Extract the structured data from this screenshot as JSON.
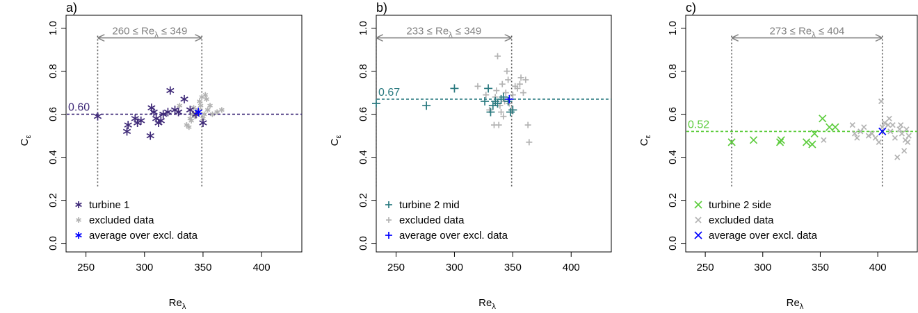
{
  "chart_data": [
    {
      "type": "scatter",
      "panel_label": "a)",
      "xlabel": "Re",
      "xlabel_sub": "λ",
      "ylabel": "C",
      "ylabel_sub": "ε",
      "xlim": [
        233,
        435
      ],
      "ylim": [
        -0.04,
        1.06
      ],
      "xticks": [
        "250",
        "300",
        "350",
        "400"
      ],
      "yticks": [
        "0.0",
        "0.2",
        "0.4",
        "0.6",
        "0.8",
        "1.0"
      ],
      "marker": "*",
      "mean_value": 0.6,
      "mean_label": "0.60",
      "mean_color": "#3f2a78",
      "range": {
        "low": 260,
        "high": 349,
        "low_label": "260",
        "high_label": "349",
        "mid_label": "Re",
        "sub": "λ"
      },
      "range_y": 0.955,
      "series": [
        {
          "name": "turbine 1",
          "color": "#3f2a78",
          "size": 12,
          "points": [
            [
              260,
              0.59
            ],
            [
              285,
              0.52
            ],
            [
              286,
              0.55
            ],
            [
              292,
              0.58
            ],
            [
              294,
              0.56
            ],
            [
              297,
              0.57
            ],
            [
              305,
              0.5
            ],
            [
              306,
              0.63
            ],
            [
              308,
              0.61
            ],
            [
              310,
              0.58
            ],
            [
              312,
              0.56
            ],
            [
              314,
              0.57
            ],
            [
              316,
              0.6
            ],
            [
              320,
              0.61
            ],
            [
              322,
              0.71
            ],
            [
              326,
              0.62
            ],
            [
              329,
              0.61
            ],
            [
              334,
              0.67
            ],
            [
              339,
              0.62
            ],
            [
              344,
              0.6
            ],
            [
              350,
              0.56
            ]
          ]
        },
        {
          "name": "excluded data",
          "color": "#b3b3b3",
          "size": 8,
          "points": [
            [
              336,
              0.55
            ],
            [
              338,
              0.54
            ],
            [
              339,
              0.58
            ],
            [
              340,
              0.57
            ],
            [
              341,
              0.6
            ],
            [
              342,
              0.63
            ],
            [
              343,
              0.59
            ],
            [
              345,
              0.61
            ],
            [
              346,
              0.62
            ],
            [
              347,
              0.66
            ],
            [
              348,
              0.64
            ],
            [
              349,
              0.68
            ],
            [
              350,
              0.58
            ],
            [
              351,
              0.6
            ],
            [
              352,
              0.69
            ],
            [
              353,
              0.67
            ],
            [
              354,
              0.62
            ],
            [
              356,
              0.64
            ],
            [
              358,
              0.6
            ],
            [
              362,
              0.61
            ],
            [
              366,
              0.62
            ],
            [
              330,
              0.64
            ]
          ]
        },
        {
          "name": "average over excl. data",
          "color": "#0000ff",
          "size": 12,
          "points": [
            [
              346,
              0.61
            ]
          ]
        }
      ]
    },
    {
      "type": "scatter",
      "panel_label": "b)",
      "xlabel": "Re",
      "xlabel_sub": "λ",
      "ylabel": "C",
      "ylabel_sub": "ε",
      "xlim": [
        233,
        435
      ],
      "ylim": [
        -0.04,
        1.06
      ],
      "xticks": [
        "250",
        "300",
        "350",
        "400"
      ],
      "yticks": [
        "0.0",
        "0.2",
        "0.4",
        "0.6",
        "0.8",
        "1.0"
      ],
      "marker": "+",
      "mean_value": 0.67,
      "mean_label": "0.67",
      "mean_color": "#2a7a80",
      "range": {
        "low": 233,
        "high": 349,
        "low_label": "233",
        "high_label": "349",
        "mid_label": "Re",
        "sub": "λ"
      },
      "range_y": 0.955,
      "series": [
        {
          "name": "turbine 2 mid",
          "color": "#2a7a80",
          "size": 12,
          "points": [
            [
              233,
              0.65
            ],
            [
              276,
              0.64
            ],
            [
              300,
              0.72
            ],
            [
              326,
              0.66
            ],
            [
              329,
              0.72
            ],
            [
              331,
              0.61
            ],
            [
              333,
              0.64
            ],
            [
              335,
              0.66
            ],
            [
              337,
              0.65
            ],
            [
              340,
              0.67
            ],
            [
              342,
              0.68
            ],
            [
              346,
              0.66
            ],
            [
              348,
              0.61
            ],
            [
              350,
              0.62
            ]
          ]
        },
        {
          "name": "excluded data",
          "color": "#b3b3b3",
          "size": 9,
          "points": [
            [
              320,
              0.73
            ],
            [
              327,
              0.69
            ],
            [
              330,
              0.62
            ],
            [
              334,
              0.55
            ],
            [
              336,
              0.71
            ],
            [
              337,
              0.87
            ],
            [
              338,
              0.55
            ],
            [
              339,
              0.64
            ],
            [
              340,
              0.61
            ],
            [
              341,
              0.74
            ],
            [
              342,
              0.59
            ],
            [
              343,
              0.66
            ],
            [
              344,
              0.7
            ],
            [
              345,
              0.8
            ],
            [
              346,
              0.76
            ],
            [
              347,
              0.65
            ],
            [
              349,
              0.62
            ],
            [
              350,
              0.69
            ],
            [
              352,
              0.73
            ],
            [
              354,
              0.72
            ],
            [
              356,
              0.74
            ],
            [
              357,
              0.77
            ],
            [
              359,
              0.7
            ],
            [
              361,
              0.76
            ],
            [
              363,
              0.55
            ],
            [
              364,
              0.47
            ],
            [
              335,
              0.68
            ]
          ]
        },
        {
          "name": "average over excl. data",
          "color": "#0000ff",
          "size": 12,
          "points": [
            [
              347,
              0.67
            ]
          ]
        }
      ]
    },
    {
      "type": "scatter",
      "panel_label": "c)",
      "xlabel": "Re",
      "xlabel_sub": "λ",
      "ylabel": "C",
      "ylabel_sub": "ε",
      "xlim": [
        233,
        435
      ],
      "ylim": [
        -0.04,
        1.06
      ],
      "xticks": [
        "250",
        "300",
        "350",
        "400"
      ],
      "yticks": [
        "0.0",
        "0.2",
        "0.4",
        "0.6",
        "0.8",
        "1.0"
      ],
      "marker": "x",
      "mean_value": 0.52,
      "mean_label": "0.52",
      "mean_color": "#5ccc3c",
      "range": {
        "low": 273,
        "high": 404,
        "low_label": "273",
        "high_label": "404",
        "mid_label": "Re",
        "sub": "λ"
      },
      "range_y": 0.955,
      "series": [
        {
          "name": "turbine 2 side",
          "color": "#5ccc3c",
          "size": 10,
          "points": [
            [
              273,
              0.47
            ],
            [
              292,
              0.48
            ],
            [
              315,
              0.47
            ],
            [
              316,
              0.48
            ],
            [
              338,
              0.47
            ],
            [
              343,
              0.46
            ],
            [
              345,
              0.51
            ],
            [
              352,
              0.58
            ],
            [
              358,
              0.54
            ],
            [
              363,
              0.54
            ]
          ]
        },
        {
          "name": "excluded data",
          "color": "#b3b3b3",
          "size": 7,
          "points": [
            [
              353,
              0.48
            ],
            [
              378,
              0.55
            ],
            [
              380,
              0.51
            ],
            [
              382,
              0.49
            ],
            [
              385,
              0.52
            ],
            [
              388,
              0.54
            ],
            [
              392,
              0.5
            ],
            [
              395,
              0.51
            ],
            [
              398,
              0.49
            ],
            [
              401,
              0.47
            ],
            [
              403,
              0.66
            ],
            [
              404,
              0.54
            ],
            [
              406,
              0.56
            ],
            [
              409,
              0.55
            ],
            [
              410,
              0.58
            ],
            [
              413,
              0.55
            ],
            [
              415,
              0.49
            ],
            [
              417,
              0.4
            ],
            [
              420,
              0.55
            ],
            [
              421,
              0.51
            ],
            [
              423,
              0.43
            ],
            [
              424,
              0.48
            ],
            [
              425,
              0.53
            ],
            [
              427,
              0.5
            ],
            [
              419,
              0.53
            ],
            [
              426,
              0.47
            ],
            [
              411,
              0.52
            ]
          ]
        },
        {
          "name": "average over excl. data",
          "color": "#0000ff",
          "size": 10,
          "points": [
            [
              404,
              0.52
            ]
          ]
        }
      ]
    }
  ]
}
